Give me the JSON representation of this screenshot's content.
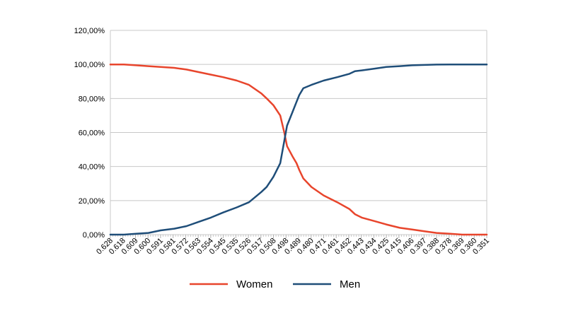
{
  "chart_data": {
    "type": "line",
    "title": "",
    "xlabel": "",
    "ylabel": "",
    "ylim": [
      0,
      120
    ],
    "y_tick_labels": [
      "0,00%",
      "20,00%",
      "40,00%",
      "60,00%",
      "80,00%",
      "100,00%",
      "120,00%"
    ],
    "y_tick_values": [
      0,
      20,
      40,
      60,
      80,
      100,
      120
    ],
    "x_tick_labels": [
      "0.628",
      "0.618",
      "0.609",
      "0.600",
      "0.591",
      "0.581",
      "0.572",
      "0.563",
      "0.554",
      "0.545",
      "0.535",
      "0.526",
      "0.517",
      "0.508",
      "0.498",
      "0.489",
      "0.480",
      "0.471",
      "0.461",
      "0.452",
      "0.443",
      "0.434",
      "0.425",
      "0.415",
      "0.406",
      "0.397",
      "0.388",
      "0.378",
      "0.369",
      "0.360",
      "0.351"
    ],
    "x_range": [
      0.628,
      0.351
    ],
    "grid": "horizontal",
    "legend_position": "bottom",
    "series": [
      {
        "name": "Women",
        "color": "#e8452c",
        "x": [
          0.628,
          0.618,
          0.609,
          0.6,
          0.591,
          0.581,
          0.572,
          0.563,
          0.554,
          0.545,
          0.535,
          0.526,
          0.517,
          0.513,
          0.508,
          0.503,
          0.5,
          0.498,
          0.494,
          0.491,
          0.489,
          0.486,
          0.48,
          0.471,
          0.461,
          0.452,
          0.448,
          0.443,
          0.434,
          0.425,
          0.415,
          0.406,
          0.397,
          0.388,
          0.378,
          0.369,
          0.36,
          0.351
        ],
        "values": [
          100,
          100,
          99.5,
          99,
          98.5,
          98,
          97,
          95.5,
          94,
          92.5,
          90.5,
          88,
          83,
          80,
          76,
          70,
          60,
          52,
          46,
          42,
          38,
          33,
          28,
          23,
          19,
          15,
          12,
          10,
          8,
          6,
          4,
          3,
          2,
          1,
          0.5,
          0,
          0,
          0
        ]
      },
      {
        "name": "Men",
        "color": "#1f4e79",
        "x": [
          0.628,
          0.618,
          0.609,
          0.6,
          0.591,
          0.581,
          0.572,
          0.563,
          0.554,
          0.545,
          0.535,
          0.526,
          0.517,
          0.513,
          0.508,
          0.503,
          0.5,
          0.498,
          0.494,
          0.491,
          0.489,
          0.486,
          0.48,
          0.471,
          0.461,
          0.452,
          0.448,
          0.443,
          0.434,
          0.425,
          0.415,
          0.406,
          0.397,
          0.388,
          0.378,
          0.369,
          0.36,
          0.351
        ],
        "values": [
          0,
          0,
          0.5,
          1,
          2.5,
          3.5,
          5,
          7.5,
          10,
          13,
          16,
          19,
          25,
          28,
          34,
          42,
          55,
          64,
          72,
          78,
          82,
          86,
          88,
          90.5,
          92.5,
          94.5,
          96,
          96.5,
          97.5,
          98.5,
          99,
          99.5,
          99.7,
          99.9,
          100,
          100,
          100,
          100
        ]
      }
    ]
  }
}
